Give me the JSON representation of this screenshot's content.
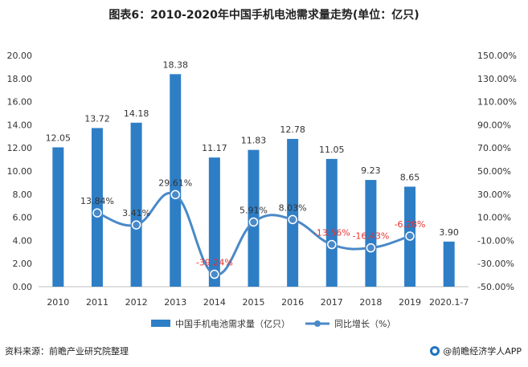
{
  "title": "图表6：2010-2020年中国手机电池需求量走势(单位：亿只)",
  "source": "资料来源：前瞻产业研究院整理",
  "brand": "@前瞻经济学人APP",
  "chart_data": {
    "type": "bar",
    "categories": [
      "2010",
      "2011",
      "2012",
      "2013",
      "2014",
      "2015",
      "2016",
      "2017",
      "2018",
      "2019",
      "2020.1-7"
    ],
    "series": [
      {
        "name": "中国手机电池需求量（亿只）",
        "type": "bar",
        "axis": "left",
        "values": [
          12.05,
          13.72,
          14.18,
          18.38,
          11.17,
          11.83,
          12.78,
          11.05,
          9.23,
          8.65,
          3.9
        ],
        "labels": [
          "12.05",
          "13.72",
          "14.18",
          "18.38",
          "11.17",
          "11.83",
          "12.78",
          "11.05",
          "9.23",
          "8.65",
          "3.90"
        ],
        "color": "#2e7ec6"
      },
      {
        "name": "同比增长（%）",
        "type": "line",
        "axis": "right",
        "values": [
          null,
          13.84,
          3.41,
          29.61,
          -39.24,
          5.91,
          8.03,
          -13.56,
          -16.43,
          -6.28,
          null
        ],
        "labels": [
          "",
          "13.84%",
          "3.41%",
          "29.61%",
          "-39.24%",
          "5.91%",
          "8.03%",
          "-13.56%",
          "-16.43%",
          "-6.28%",
          ""
        ],
        "color": "#4a89c8",
        "negative_label_color": "#e8312f"
      }
    ],
    "y_left": {
      "min": 0,
      "max": 20,
      "step": 2,
      "ticks": [
        "0.00",
        "2.00",
        "4.00",
        "6.00",
        "8.00",
        "10.00",
        "12.00",
        "14.00",
        "16.00",
        "18.00",
        "20.00"
      ]
    },
    "y_right": {
      "min": -50,
      "max": 150,
      "step": 20,
      "ticks": [
        "-50.00%",
        "-30.00%",
        "-10.00%",
        "10.00%",
        "30.00%",
        "50.00%",
        "70.00%",
        "90.00%",
        "110.00%",
        "130.00%",
        "150.00%"
      ]
    },
    "grid": false,
    "legend_position": "bottom"
  }
}
